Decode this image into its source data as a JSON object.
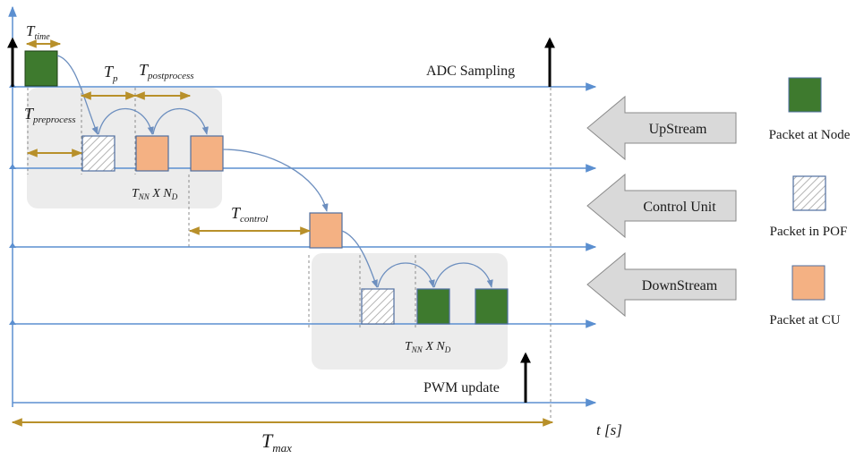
{
  "labels": {
    "adc": "ADC Sampling",
    "pwm": "PWM update",
    "t_axis": "t [s]"
  },
  "timing": {
    "t_time": {
      "base": "T",
      "sub": "time"
    },
    "t_p": {
      "base": "T",
      "sub": "p"
    },
    "t_post": {
      "base": "T",
      "sub": "postprocess"
    },
    "t_pre": {
      "base": "T",
      "sub": "preprocess"
    },
    "t_ctrl": {
      "base": "T",
      "sub": "control"
    },
    "t_max": {
      "base": "T",
      "sub": "max"
    },
    "tnn_up": {
      "a": "T",
      "a_sub": "NN",
      "x": " X ",
      "b": "N",
      "b_sub": "D"
    },
    "tnn_down": {
      "a": "T",
      "a_sub": "NN",
      "x": " X ",
      "b": "N",
      "b_sub": "D"
    }
  },
  "stages": {
    "upstream": "UpStream",
    "control": "Control Unit",
    "downstream": "DownStream"
  },
  "legend": {
    "node": "Packet at Node",
    "pof": "Packet in POF",
    "cu": "Packet at CU"
  },
  "colors": {
    "node": "#3e7a2e",
    "cu": "#f4b183",
    "axis": "#5b8fd0",
    "interval": "#b8902a",
    "region": "#ececec",
    "arrow_fill": "#d9d9d9"
  }
}
